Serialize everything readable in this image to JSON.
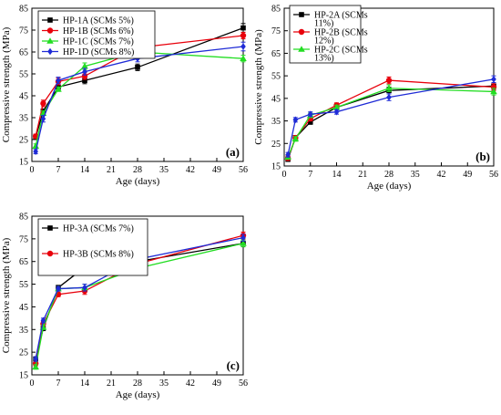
{
  "chart_data": [
    {
      "type": "line",
      "panel_label": "(a)",
      "xlabel": "Age (days)",
      "ylabel": "Compressive strength (MPa)",
      "xlim": [
        0,
        56
      ],
      "ylim": [
        15,
        85
      ],
      "xticks": [
        0,
        7,
        14,
        21,
        28,
        35,
        42,
        49,
        56
      ],
      "yticks": [
        15,
        25,
        35,
        45,
        55,
        65,
        75,
        85
      ],
      "legend_position": "top-left",
      "series": [
        {
          "name": "HP-1A (SCMs 5%)",
          "color": "#000000",
          "marker": "square",
          "x": [
            1,
            3,
            7,
            14,
            28,
            56
          ],
          "y": [
            26,
            38,
            49,
            52,
            58,
            76
          ],
          "err": [
            1,
            1,
            1,
            1.5,
            1.5,
            2
          ]
        },
        {
          "name": "HP-1B (SCMs 6%)",
          "color": "#e8000b",
          "marker": "circle",
          "x": [
            1,
            3,
            7,
            14,
            28,
            56
          ],
          "y": [
            26.5,
            41.5,
            51.5,
            54,
            67,
            72.5
          ],
          "err": [
            1,
            1.5,
            1.5,
            1.5,
            1.5,
            1.5
          ]
        },
        {
          "name": "HP-1C (SCMs 7%)",
          "color": "#22dd22",
          "marker": "triangle",
          "x": [
            1,
            3,
            7,
            14,
            28,
            56
          ],
          "y": [
            22,
            37,
            48,
            58.5,
            65,
            62
          ],
          "err": [
            1,
            1,
            1,
            1.5,
            1.5,
            1.5
          ]
        },
        {
          "name": "HP-1D (SCMs 8%)",
          "color": "#1f2bd6",
          "marker": "diamond",
          "x": [
            1,
            3,
            7,
            14,
            28,
            56
          ],
          "y": [
            19.5,
            34.5,
            52,
            56,
            62,
            67.5
          ],
          "err": [
            1,
            1.5,
            1.5,
            1.5,
            1.5,
            2
          ]
        }
      ]
    },
    {
      "type": "line",
      "panel_label": "(b)",
      "xlabel": "Age (days)",
      "ylabel": "Compressive strength (MPa)",
      "xlim": [
        0,
        56
      ],
      "ylim": [
        15,
        85
      ],
      "xticks": [
        0,
        7,
        14,
        21,
        28,
        35,
        42,
        49,
        56
      ],
      "yticks": [
        15,
        25,
        35,
        45,
        55,
        65,
        75,
        85
      ],
      "legend_position": "top-left",
      "series": [
        {
          "name": "HP-2A (SCMs 11%)",
          "color": "#000000",
          "marker": "square",
          "x": [
            1,
            3,
            7,
            14,
            28,
            56
          ],
          "y": [
            18,
            27.5,
            34.5,
            41,
            48.5,
            50.5
          ],
          "err": [
            1,
            1,
            1,
            1,
            1.5,
            1.5
          ]
        },
        {
          "name": "HP-2B (SCMs 12%)",
          "color": "#e8000b",
          "marker": "circle",
          "x": [
            1,
            3,
            7,
            14,
            28,
            56
          ],
          "y": [
            18.5,
            27.5,
            36,
            42,
            53,
            50
          ],
          "err": [
            1,
            1,
            1,
            1,
            1.5,
            1.5
          ]
        },
        {
          "name": "HP-2C (SCMs 13%)",
          "color": "#22dd22",
          "marker": "triangle",
          "x": [
            1,
            3,
            7,
            14,
            28,
            56
          ],
          "y": [
            19,
            27,
            37.5,
            41,
            49.5,
            48
          ],
          "err": [
            1,
            1,
            1,
            1,
            1.5,
            1.5
          ]
        },
        {
          "name": "",
          "color": "#1f2bd6",
          "marker": "diamond",
          "x": [
            1,
            3,
            7,
            14,
            28,
            56
          ],
          "y": [
            20,
            35.5,
            38,
            39,
            45.5,
            53.5
          ],
          "err": [
            1,
            1,
            1,
            1,
            1.5,
            1.5
          ]
        }
      ]
    },
    {
      "type": "line",
      "panel_label": "(c)",
      "xlabel": "Age (days)",
      "ylabel": "Compressive strength (MPa)",
      "xlim": [
        0,
        56
      ],
      "ylim": [
        15,
        85
      ],
      "xticks": [
        0,
        7,
        14,
        21,
        28,
        35,
        42,
        49,
        56
      ],
      "yticks": [
        15,
        25,
        35,
        45,
        55,
        65,
        75,
        85
      ],
      "legend_position": "top-left",
      "series": [
        {
          "name": "HP-3A (SCMs 7%)",
          "color": "#000000",
          "marker": "square",
          "x": [
            1,
            3,
            7,
            14,
            28,
            56
          ],
          "y": [
            22,
            35.5,
            53.5,
            62.5,
            65,
            73
          ],
          "err": [
            1,
            1,
            1,
            1.5,
            1.5,
            1.5
          ]
        },
        {
          "name": "HP-3B (SCMs 8%)",
          "color": "#e8000b",
          "marker": "circle",
          "x": [
            1,
            3,
            7,
            14,
            28,
            56
          ],
          "y": [
            20,
            37.5,
            50.5,
            52,
            64,
            76.5
          ],
          "err": [
            1,
            1,
            1,
            1.5,
            1.5,
            1.5
          ]
        },
        {
          "name": "",
          "color": "#22dd22",
          "marker": "triangle",
          "x": [
            1,
            3,
            7,
            14,
            28,
            56
          ],
          "y": [
            18.5,
            36,
            53,
            53.5,
            62,
            73
          ],
          "err": [
            1,
            1,
            1,
            1.5,
            1.5,
            1.5
          ]
        },
        {
          "name": "",
          "color": "#1f2bd6",
          "marker": "diamond",
          "x": [
            1,
            3,
            7,
            14,
            28,
            56
          ],
          "y": [
            22,
            39,
            53,
            53.5,
            66,
            75.5
          ],
          "err": [
            1,
            1,
            1,
            1.5,
            1.5,
            1.5
          ]
        }
      ]
    }
  ]
}
